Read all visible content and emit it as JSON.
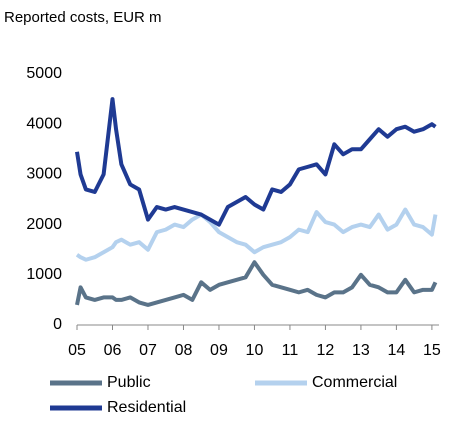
{
  "chart_data": {
    "type": "line",
    "title": "Reported costs, EUR m",
    "x": [
      5,
      5.1,
      5.25,
      5.5,
      5.75,
      6,
      6.1,
      6.25,
      6.5,
      6.75,
      7,
      7.25,
      7.5,
      7.75,
      8,
      8.25,
      8.5,
      8.75,
      9,
      9.25,
      9.5,
      9.75,
      10,
      10.25,
      10.5,
      10.75,
      11,
      11.25,
      11.5,
      11.75,
      12,
      12.25,
      12.5,
      12.75,
      13,
      13.25,
      13.5,
      13.75,
      14,
      14.25,
      14.5,
      14.75,
      15,
      15.1
    ],
    "series": [
      {
        "name": "Commercial",
        "color": "#b4d1ee",
        "values": [
          1400,
          1350,
          1300,
          1350,
          1450,
          1550,
          1650,
          1700,
          1600,
          1650,
          1500,
          1850,
          1900,
          2000,
          1950,
          2100,
          2200,
          2050,
          1850,
          1750,
          1650,
          1600,
          1450,
          1550,
          1600,
          1650,
          1750,
          1900,
          1850,
          2250,
          2050,
          2000,
          1850,
          1950,
          2000,
          1950,
          2200,
          1900,
          2000,
          2300,
          2000,
          1950,
          1800,
          2200
        ]
      },
      {
        "name": "Public",
        "color": "#5a7389",
        "values": [
          400,
          750,
          550,
          500,
          550,
          550,
          500,
          500,
          550,
          450,
          400,
          450,
          500,
          550,
          600,
          500,
          850,
          700,
          800,
          850,
          900,
          950,
          1250,
          1000,
          800,
          750,
          700,
          650,
          700,
          600,
          550,
          650,
          650,
          750,
          1000,
          800,
          750,
          650,
          650,
          900,
          650,
          700,
          700,
          850
        ]
      },
      {
        "name": "Residential",
        "color": "#1f3a93",
        "values": [
          3450,
          3000,
          2700,
          2650,
          3000,
          4500,
          3900,
          3200,
          2800,
          2700,
          2100,
          2350,
          2300,
          2350,
          2300,
          2250,
          2200,
          2100,
          2000,
          2350,
          2450,
          2550,
          2400,
          2300,
          2700,
          2650,
          2800,
          3100,
          3150,
          3200,
          3000,
          3600,
          3400,
          3500,
          3500,
          3700,
          3900,
          3750,
          3900,
          3950,
          3850,
          3900,
          4000,
          3950
        ]
      }
    ],
    "xlim": [
      5,
      15.2
    ],
    "xticks": [
      {
        "value": 5,
        "label": "05"
      },
      {
        "value": 6,
        "label": "06"
      },
      {
        "value": 7,
        "label": "07"
      },
      {
        "value": 8,
        "label": "08"
      },
      {
        "value": 9,
        "label": "09"
      },
      {
        "value": 10,
        "label": "10"
      },
      {
        "value": 11,
        "label": "11"
      },
      {
        "value": 12,
        "label": "12"
      },
      {
        "value": 13,
        "label": "13"
      },
      {
        "value": 14,
        "label": "14"
      },
      {
        "value": 15,
        "label": "15"
      }
    ],
    "ylim": [
      0,
      5000
    ],
    "yticks": [
      0,
      1000,
      2000,
      3000,
      4000,
      5000
    ],
    "grid": false
  }
}
